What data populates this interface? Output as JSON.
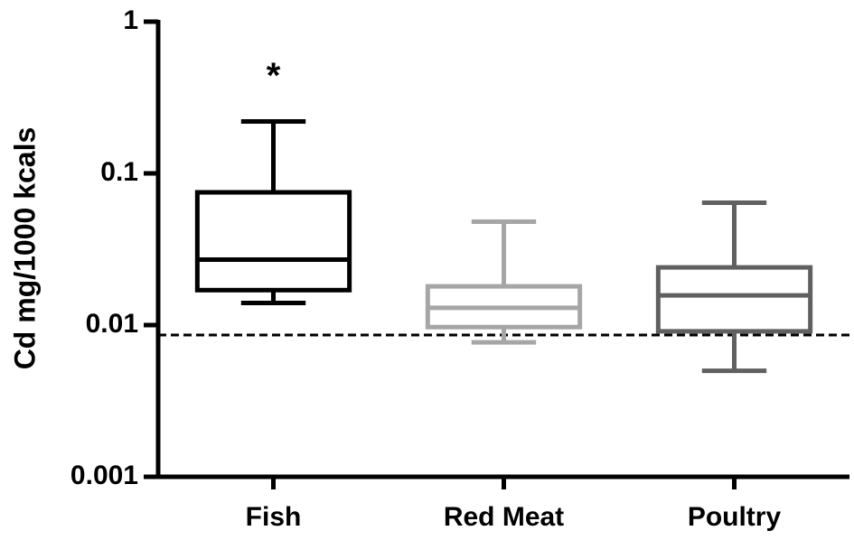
{
  "chart_data": {
    "type": "box",
    "ylabel": "Cd mg/1000 kcals",
    "categories": [
      "Fish",
      "Red Meat",
      "Poultry"
    ],
    "colors": [
      "#000000",
      "#a6a6a6",
      "#606060"
    ],
    "whislo": [
      0.014,
      0.0077,
      0.005
    ],
    "q1": [
      0.017,
      0.0097,
      0.0091
    ],
    "median": [
      0.027,
      0.013,
      0.0157
    ],
    "q3": [
      0.075,
      0.018,
      0.024
    ],
    "whishi": [
      0.22,
      0.048,
      0.064
    ],
    "reference_line": 0.0086,
    "annotations": [
      {
        "text": "*",
        "category": "Fish"
      }
    ],
    "ylim": [
      0.001,
      1
    ],
    "yticks": [
      0.001,
      0.01,
      0.1,
      1
    ],
    "log_y": true
  }
}
